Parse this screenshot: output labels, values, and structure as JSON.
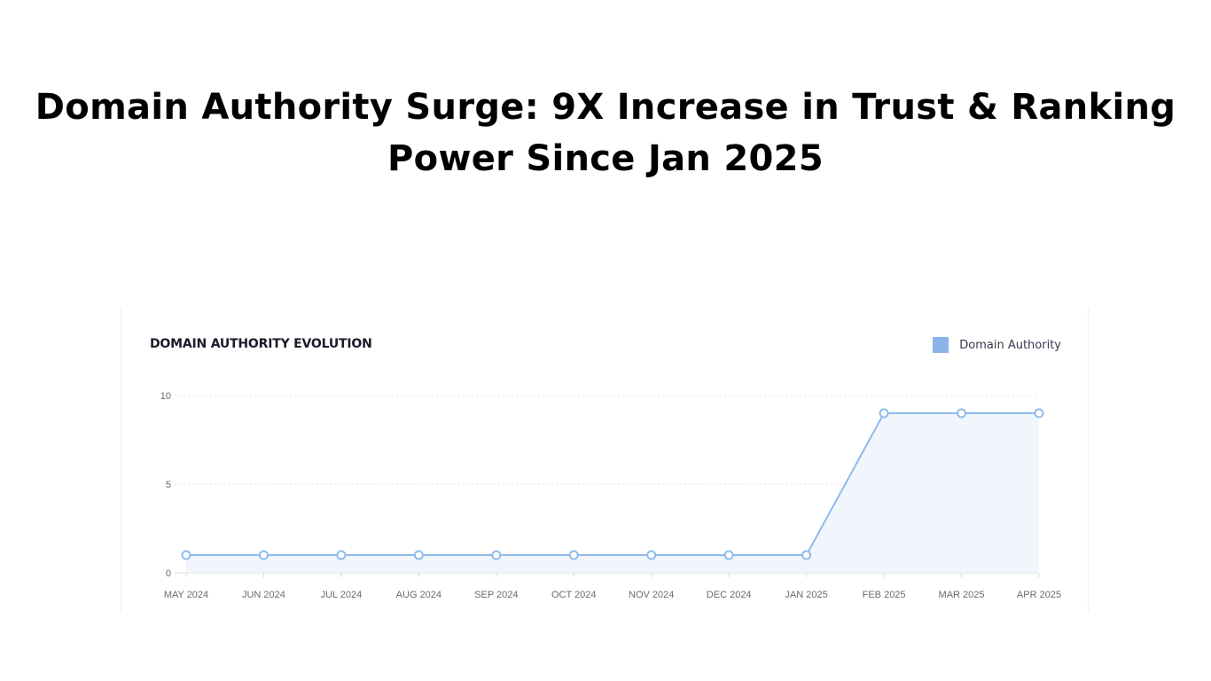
{
  "headline": {
    "line1": "Domain Authority Surge: 9X Increase in Trust & Ranking",
    "line2": "Power Since Jan 2025"
  },
  "chart_data": {
    "type": "area",
    "title": "DOMAIN AUTHORITY EVOLUTION",
    "xlabel": "",
    "ylabel": "",
    "categories": [
      "MAY 2024",
      "JUN 2024",
      "JUL 2024",
      "AUG 2024",
      "SEP 2024",
      "OCT 2024",
      "NOV 2024",
      "DEC 2024",
      "JAN 2025",
      "FEB 2025",
      "MAR 2025",
      "APR 2025"
    ],
    "series": [
      {
        "name": "Domain Authority",
        "values": [
          1,
          1,
          1,
          1,
          1,
          1,
          1,
          1,
          1,
          9,
          9,
          9
        ]
      }
    ],
    "ylim": [
      0,
      10
    ],
    "yticks": [
      0,
      5,
      10
    ],
    "grid": true,
    "legend_position": "top-right",
    "colors": {
      "line": "#8fbbee",
      "fill": "#eef3fb",
      "legend": "#8ab4ea",
      "grid": "#e3e3e3",
      "axis": "#d9d9d9",
      "tick_text": "#6b6b6b"
    }
  }
}
